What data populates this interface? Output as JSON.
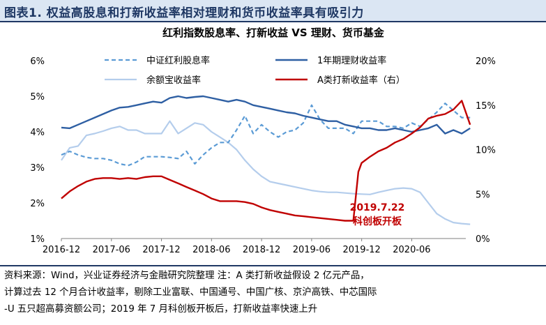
{
  "header": {
    "title": "图表1. 权益高股息和打新收益率相对理财和货币收益率具有吸引力"
  },
  "footer": {
    "lines": [
      "资料来源：Wind，兴业证券经济与金融研究院整理    注：A 类打新收益假设 2 亿元产品，",
      "计算过去 12 个月合计收益率，剔除工业富联、中国通号、中国广核、京沪高铁、中芯国际",
      "-U 五只超高募资额公司；2019 年 7 月科创板开板后，打新收益率快速上升"
    ]
  },
  "chart_data": {
    "type": "line",
    "title": "红利指数股息率、打新收益 VS 理财、货币基金",
    "x_start": "2016-12",
    "x_labels": [
      "2016-12",
      "2017-06",
      "2017-12",
      "2018-06",
      "2018-12",
      "2019-06",
      "2019-12",
      "2020-06"
    ],
    "y_left": {
      "min": 1,
      "max": 6,
      "ticks": [
        "1%",
        "2%",
        "3%",
        "4%",
        "5%",
        "6%"
      ]
    },
    "y_right": {
      "min": 0,
      "max": 20,
      "ticks": [
        "0%",
        "5%",
        "10%",
        "15%",
        "20%"
      ]
    },
    "legend": [
      {
        "name": "中证红利股息率",
        "color": "#5b9bd5",
        "dash": "6,4",
        "width": 2.2
      },
      {
        "name": "1年期理财收益率",
        "color": "#2e5fa3",
        "dash": "",
        "width": 2.4
      },
      {
        "name": "余额宝收益率",
        "color": "#b4cdec",
        "dash": "",
        "width": 2.2
      },
      {
        "name": "A类打新收益率（右）",
        "color": "#c00000",
        "dash": "",
        "width": 2.4
      }
    ],
    "annotation": {
      "lines": [
        "2019.7.22",
        "科创板开板"
      ],
      "date": "2019-07"
    },
    "series": [
      {
        "name": "中证红利股息率",
        "axis": "left",
        "points": [
          [
            0,
            3.35
          ],
          [
            1,
            3.45
          ],
          [
            2,
            3.35
          ],
          [
            3,
            3.28
          ],
          [
            4,
            3.25
          ],
          [
            5,
            3.25
          ],
          [
            6,
            3.2
          ],
          [
            7,
            3.1
          ],
          [
            8,
            3.05
          ],
          [
            9,
            3.15
          ],
          [
            10,
            3.3
          ],
          [
            11,
            3.3
          ],
          [
            12,
            3.3
          ],
          [
            13,
            3.28
          ],
          [
            14,
            3.25
          ],
          [
            15,
            3.45
          ],
          [
            16,
            3.1
          ],
          [
            17,
            3.35
          ],
          [
            18,
            3.55
          ],
          [
            19,
            3.7
          ],
          [
            20,
            3.7
          ],
          [
            21,
            4.05
          ],
          [
            22,
            4.45
          ],
          [
            23,
            3.95
          ],
          [
            24,
            4.2
          ],
          [
            25,
            4.0
          ],
          [
            26,
            3.85
          ],
          [
            27,
            4.0
          ],
          [
            28,
            4.05
          ],
          [
            29,
            4.25
          ],
          [
            30,
            4.75
          ],
          [
            31,
            4.35
          ],
          [
            32,
            4.1
          ],
          [
            33,
            4.1
          ],
          [
            34,
            4.1
          ],
          [
            35,
            3.95
          ],
          [
            36,
            4.3
          ],
          [
            37,
            4.3
          ],
          [
            38,
            4.3
          ],
          [
            39,
            4.15
          ],
          [
            40,
            4.15
          ],
          [
            41,
            4.1
          ],
          [
            42,
            4.25
          ],
          [
            43,
            4.15
          ],
          [
            44,
            4.35
          ],
          [
            45,
            4.55
          ],
          [
            46,
            4.8
          ],
          [
            47,
            4.6
          ],
          [
            48,
            4.4
          ],
          [
            49,
            4.4
          ]
        ]
      },
      {
        "name": "1年期理财收益率",
        "axis": "left",
        "points": [
          [
            0,
            4.12
          ],
          [
            1,
            4.1
          ],
          [
            2,
            4.2
          ],
          [
            3,
            4.3
          ],
          [
            4,
            4.4
          ],
          [
            5,
            4.5
          ],
          [
            6,
            4.6
          ],
          [
            7,
            4.68
          ],
          [
            8,
            4.7
          ],
          [
            9,
            4.75
          ],
          [
            10,
            4.8
          ],
          [
            11,
            4.85
          ],
          [
            12,
            4.82
          ],
          [
            13,
            4.95
          ],
          [
            14,
            5.0
          ],
          [
            15,
            4.95
          ],
          [
            16,
            4.98
          ],
          [
            17,
            5.0
          ],
          [
            18,
            4.95
          ],
          [
            19,
            4.9
          ],
          [
            20,
            4.85
          ],
          [
            21,
            4.9
          ],
          [
            22,
            4.85
          ],
          [
            23,
            4.75
          ],
          [
            24,
            4.7
          ],
          [
            25,
            4.65
          ],
          [
            26,
            4.6
          ],
          [
            27,
            4.55
          ],
          [
            28,
            4.52
          ],
          [
            29,
            4.45
          ],
          [
            30,
            4.4
          ],
          [
            31,
            4.35
          ],
          [
            32,
            4.3
          ],
          [
            33,
            4.3
          ],
          [
            34,
            4.2
          ],
          [
            35,
            4.15
          ],
          [
            36,
            4.1
          ],
          [
            37,
            4.1
          ],
          [
            38,
            4.05
          ],
          [
            39,
            4.05
          ],
          [
            40,
            4.1
          ],
          [
            41,
            4.05
          ],
          [
            42,
            4.0
          ],
          [
            43,
            4.05
          ],
          [
            44,
            4.1
          ],
          [
            45,
            4.2
          ],
          [
            46,
            3.95
          ],
          [
            47,
            4.05
          ],
          [
            48,
            3.95
          ],
          [
            49,
            4.1
          ]
        ]
      },
      {
        "name": "余额宝收益率",
        "axis": "left",
        "points": [
          [
            0,
            3.2
          ],
          [
            1,
            3.55
          ],
          [
            2,
            3.6
          ],
          [
            3,
            3.9
          ],
          [
            4,
            3.95
          ],
          [
            5,
            4.02
          ],
          [
            6,
            4.1
          ],
          [
            7,
            4.15
          ],
          [
            8,
            4.05
          ],
          [
            9,
            4.05
          ],
          [
            10,
            3.95
          ],
          [
            11,
            3.95
          ],
          [
            12,
            3.95
          ],
          [
            13,
            4.3
          ],
          [
            14,
            3.95
          ],
          [
            15,
            4.1
          ],
          [
            16,
            4.25
          ],
          [
            17,
            4.2
          ],
          [
            18,
            4.0
          ],
          [
            19,
            3.85
          ],
          [
            20,
            3.7
          ],
          [
            21,
            3.5
          ],
          [
            22,
            3.2
          ],
          [
            23,
            2.95
          ],
          [
            24,
            2.75
          ],
          [
            25,
            2.6
          ],
          [
            26,
            2.55
          ],
          [
            27,
            2.5
          ],
          [
            28,
            2.45
          ],
          [
            29,
            2.4
          ],
          [
            30,
            2.35
          ],
          [
            31,
            2.32
          ],
          [
            32,
            2.3
          ],
          [
            33,
            2.3
          ],
          [
            34,
            2.28
          ],
          [
            35,
            2.26
          ],
          [
            36,
            2.25
          ],
          [
            37,
            2.24
          ],
          [
            38,
            2.3
          ],
          [
            39,
            2.35
          ],
          [
            40,
            2.4
          ],
          [
            41,
            2.42
          ],
          [
            42,
            2.4
          ],
          [
            43,
            2.3
          ],
          [
            44,
            2.0
          ],
          [
            45,
            1.7
          ],
          [
            46,
            1.55
          ],
          [
            47,
            1.45
          ],
          [
            48,
            1.42
          ],
          [
            49,
            1.4
          ]
        ]
      },
      {
        "name": "A类打新收益率（右）",
        "axis": "right",
        "points": [
          [
            0,
            4.5
          ],
          [
            1,
            5.3
          ],
          [
            2,
            5.9
          ],
          [
            3,
            6.4
          ],
          [
            4,
            6.7
          ],
          [
            5,
            6.8
          ],
          [
            6,
            6.8
          ],
          [
            7,
            6.7
          ],
          [
            8,
            6.8
          ],
          [
            9,
            6.7
          ],
          [
            10,
            6.9
          ],
          [
            11,
            7.0
          ],
          [
            12,
            7.0
          ],
          [
            13,
            6.6
          ],
          [
            14,
            6.2
          ],
          [
            15,
            5.8
          ],
          [
            16,
            5.4
          ],
          [
            17,
            5.0
          ],
          [
            18,
            4.5
          ],
          [
            19,
            4.2
          ],
          [
            20,
            4.2
          ],
          [
            21,
            4.2
          ],
          [
            22,
            4.1
          ],
          [
            23,
            3.9
          ],
          [
            24,
            3.5
          ],
          [
            25,
            3.2
          ],
          [
            26,
            3.0
          ],
          [
            27,
            2.8
          ],
          [
            28,
            2.6
          ],
          [
            29,
            2.5
          ],
          [
            30,
            2.4
          ],
          [
            31,
            2.3
          ],
          [
            32,
            2.2
          ],
          [
            33,
            2.1
          ],
          [
            34,
            2.0
          ],
          [
            35,
            2.0
          ],
          [
            35.6,
            7.5
          ],
          [
            36,
            8.5
          ],
          [
            37,
            9.2
          ],
          [
            38,
            9.8
          ],
          [
            39,
            10.2
          ],
          [
            40,
            10.8
          ],
          [
            41,
            11.2
          ],
          [
            42,
            11.8
          ],
          [
            43,
            12.5
          ],
          [
            44,
            13.5
          ],
          [
            45,
            13.8
          ],
          [
            46,
            14.0
          ],
          [
            47,
            14.5
          ],
          [
            48,
            15.5
          ],
          [
            49,
            12.8
          ]
        ]
      }
    ]
  }
}
